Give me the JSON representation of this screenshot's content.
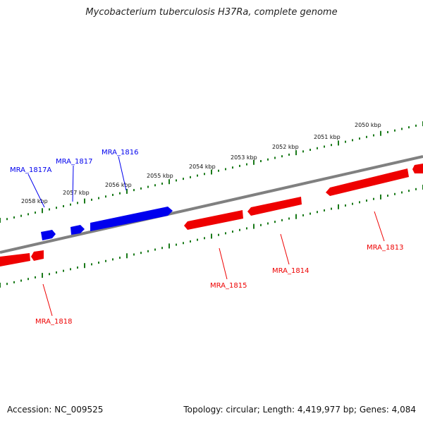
{
  "title": "Mycobacterium tuberculosis H37Ra, complete genome",
  "footer": {
    "accession": "Accession: NC_009525",
    "summary": "Topology: circular; Length: 4,419,977 bp; Genes: 4,084"
  },
  "colors": {
    "forward_strand": "#0000ee",
    "reverse_strand": "#ee0000",
    "backbone": "#808080",
    "ticks": "#1a7a1a"
  },
  "ticks": [
    "2050 kbp",
    "2051 kbp",
    "2052 kbp",
    "2053 kbp",
    "2054 kbp",
    "2055 kbp",
    "2056 kbp",
    "2057 kbp",
    "2058 kbp"
  ],
  "genes": [
    {
      "label": "MRA_1813",
      "strand": "reverse"
    },
    {
      "label": "MRA_1814",
      "strand": "reverse"
    },
    {
      "label": "MRA_1815",
      "strand": "reverse"
    },
    {
      "label": "MRA_1816",
      "strand": "forward"
    },
    {
      "label": "MRA_1817",
      "strand": "forward"
    },
    {
      "label": "MRA_1817A",
      "strand": "forward"
    },
    {
      "label": "MRA_1818",
      "strand": "reverse"
    }
  ]
}
